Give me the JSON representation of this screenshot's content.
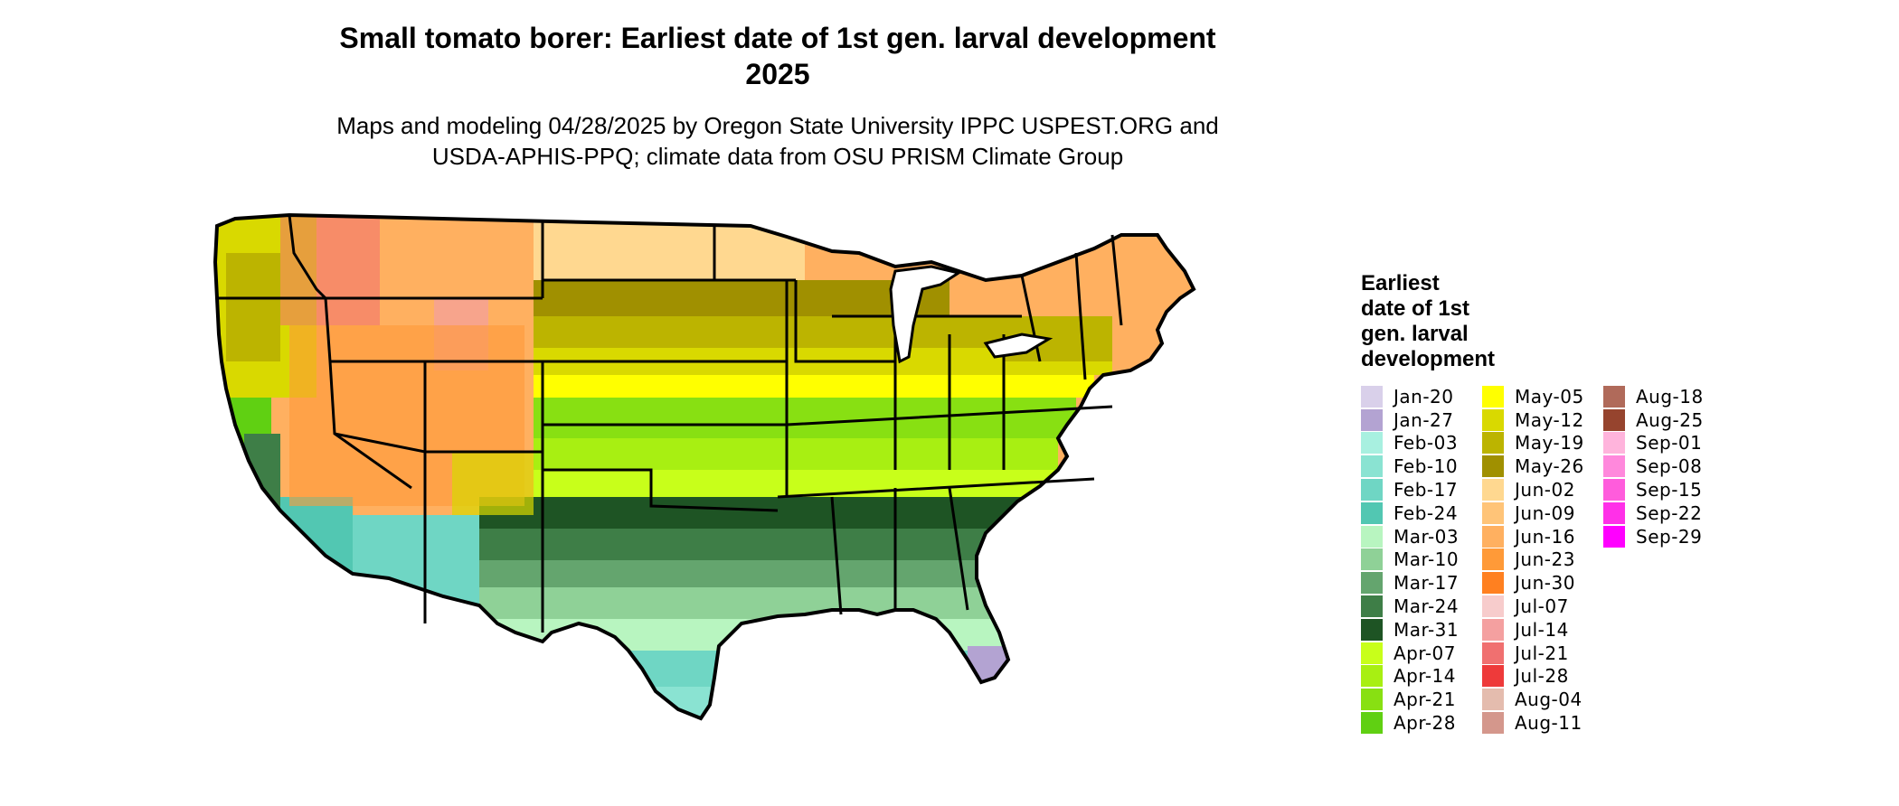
{
  "map": {
    "title_line1": "Small tomato borer: Earliest date of 1st gen. larval development",
    "title_line2": "2025",
    "subtitle_line1": "Maps and modeling 04/28/2025 by Oregon State University IPPC USPEST.ORG and",
    "subtitle_line2": "USDA-APHIS-PPQ; climate data from OSU PRISM Climate Group",
    "region": "Contiguous United States"
  },
  "legend": {
    "title_lines": [
      "Earliest",
      "date of 1st",
      "gen. larval",
      "development"
    ],
    "columns": [
      [
        {
          "label": "Jan-20",
          "color": "#d9d0ea"
        },
        {
          "label": "Jan-27",
          "color": "#b3a3d2"
        },
        {
          "label": "Feb-03",
          "color": "#a8f0e0"
        },
        {
          "label": "Feb-10",
          "color": "#8ae3d2"
        },
        {
          "label": "Feb-17",
          "color": "#6fd6c4"
        },
        {
          "label": "Feb-24",
          "color": "#52c7b2"
        },
        {
          "label": "Mar-03",
          "color": "#b8f5c0"
        },
        {
          "label": "Mar-10",
          "color": "#8fd197"
        },
        {
          "label": "Mar-17",
          "color": "#64a56e"
        },
        {
          "label": "Mar-24",
          "color": "#3e7e47"
        },
        {
          "label": "Mar-31",
          "color": "#1e5424"
        },
        {
          "label": "Apr-07",
          "color": "#c8ff1a"
        },
        {
          "label": "Apr-14",
          "color": "#a8ef12"
        },
        {
          "label": "Apr-21",
          "color": "#88e012"
        },
        {
          "label": "Apr-28",
          "color": "#60d012"
        }
      ],
      [
        {
          "label": "May-05",
          "color": "#ffff00"
        },
        {
          "label": "May-12",
          "color": "#d9d900"
        },
        {
          "label": "May-19",
          "color": "#bcb400"
        },
        {
          "label": "May-26",
          "color": "#a09000"
        },
        {
          "label": "Jun-02",
          "color": "#ffd890"
        },
        {
          "label": "Jun-09",
          "color": "#ffc478"
        },
        {
          "label": "Jun-16",
          "color": "#ffb060"
        },
        {
          "label": "Jun-23",
          "color": "#ff9a38"
        },
        {
          "label": "Jun-30",
          "color": "#ff8020"
        },
        {
          "label": "Jul-07",
          "color": "#f7cccc"
        },
        {
          "label": "Jul-14",
          "color": "#f4a0a0"
        },
        {
          "label": "Jul-21",
          "color": "#f07070"
        },
        {
          "label": "Jul-28",
          "color": "#ee3a3a"
        },
        {
          "label": "Aug-04",
          "color": "#e4bcae"
        },
        {
          "label": "Aug-11",
          "color": "#d4978c"
        }
      ],
      [
        {
          "label": "Aug-18",
          "color": "#b06a5a"
        },
        {
          "label": "Aug-25",
          "color": "#96442e"
        },
        {
          "label": "Sep-01",
          "color": "#ffb4dc"
        },
        {
          "label": "Sep-08",
          "color": "#ff88dc"
        },
        {
          "label": "Sep-15",
          "color": "#ff5cdc"
        },
        {
          "label": "Sep-22",
          "color": "#ff30e8"
        },
        {
          "label": "Sep-29",
          "color": "#ff00ff"
        }
      ]
    ]
  }
}
